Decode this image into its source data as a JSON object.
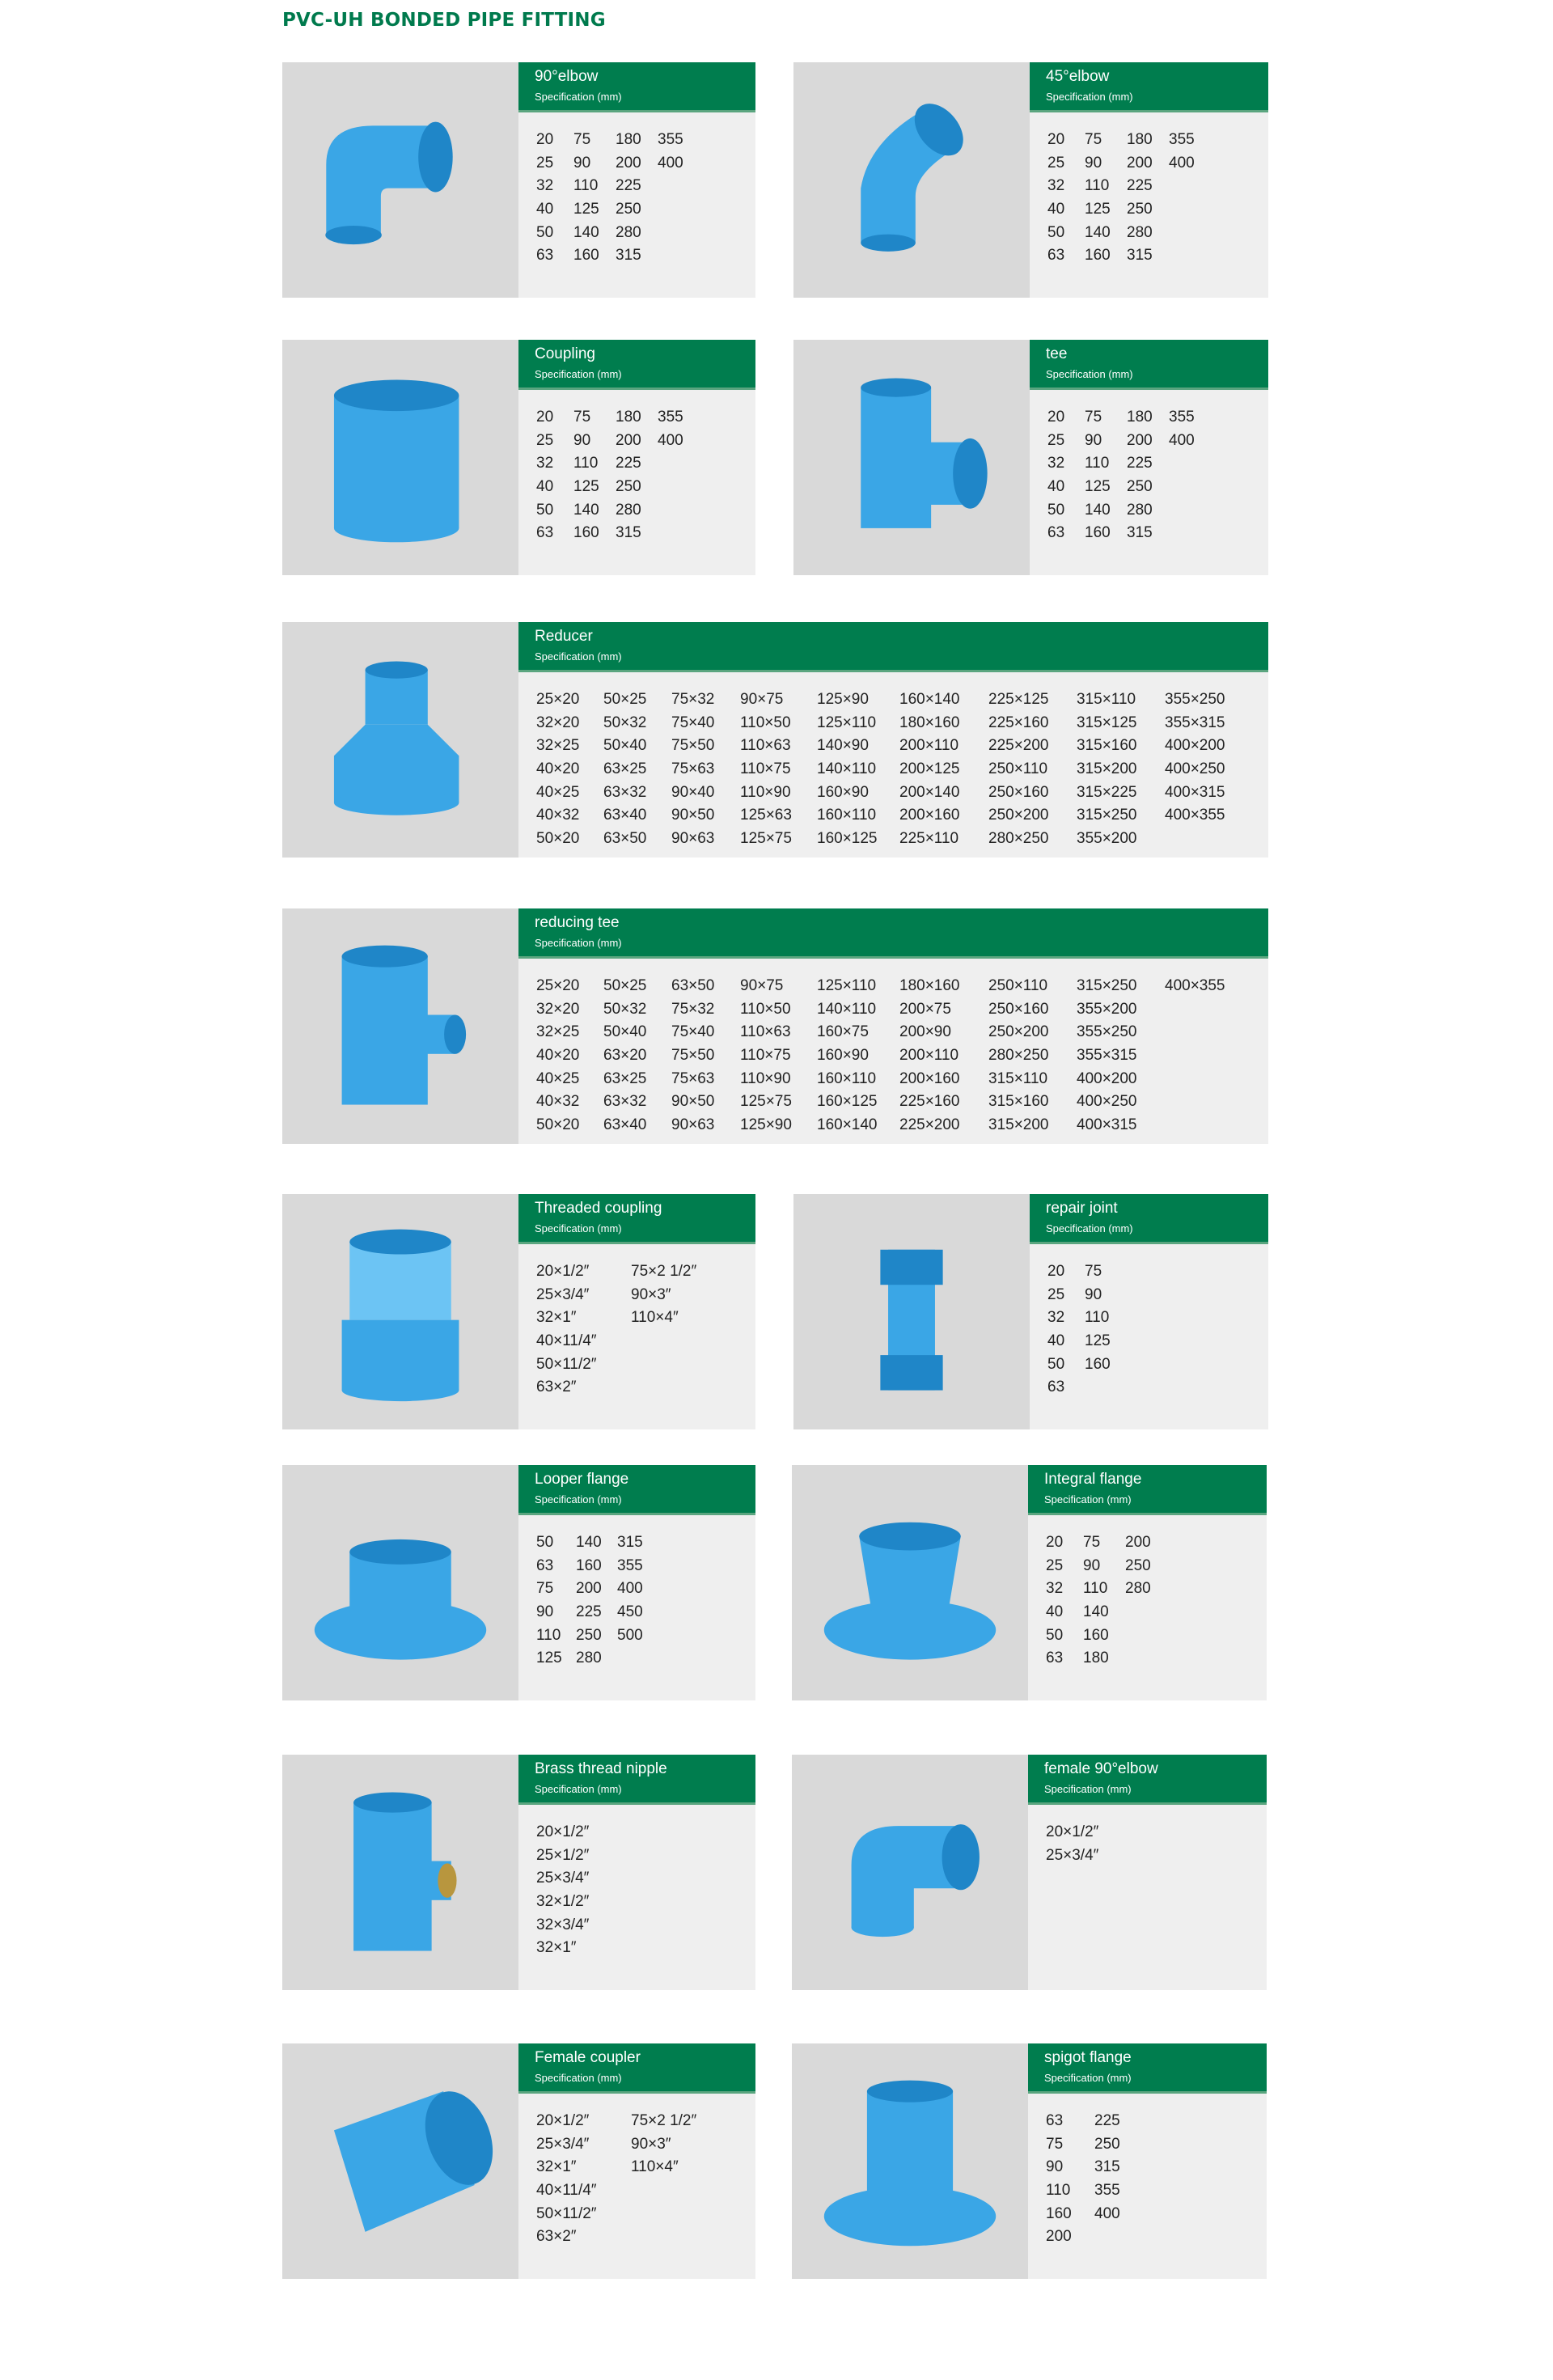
{
  "title": "PVC-UH BONDED PIPE FITTING",
  "spec_label": "Specification (mm)",
  "colors": {
    "accent": "#007d4e",
    "pipe_blue": "#3aa6e6"
  },
  "products": [
    {
      "name": "90°elbow",
      "icon": "elbow-90",
      "layout": "half",
      "rows": [
        [
          "20",
          "75",
          "180",
          "355"
        ],
        [
          "25",
          "90",
          "200",
          "400"
        ],
        [
          "32",
          "110",
          "225"
        ],
        [
          "40",
          "125",
          "250"
        ],
        [
          "50",
          "140",
          "280"
        ],
        [
          "63",
          "160",
          "315"
        ]
      ]
    },
    {
      "name": "45°elbow",
      "icon": "elbow-45",
      "layout": "half",
      "rows": [
        [
          "20",
          "75",
          "180",
          "355"
        ],
        [
          "25",
          "90",
          "200",
          "400"
        ],
        [
          "32",
          "110",
          "225"
        ],
        [
          "40",
          "125",
          "250"
        ],
        [
          "50",
          "140",
          "280"
        ],
        [
          "63",
          "160",
          "315"
        ]
      ]
    },
    {
      "name": "Coupling",
      "icon": "coupling",
      "layout": "half",
      "rows": [
        [
          "20",
          "75",
          "180",
          "355"
        ],
        [
          "25",
          "90",
          "200",
          "400"
        ],
        [
          "32",
          "110",
          "225"
        ],
        [
          "40",
          "125",
          "250"
        ],
        [
          "50",
          "140",
          "280"
        ],
        [
          "63",
          "160",
          "315"
        ]
      ]
    },
    {
      "name": "tee",
      "icon": "tee",
      "layout": "half",
      "rows": [
        [
          "20",
          "75",
          "180",
          "355"
        ],
        [
          "25",
          "90",
          "200",
          "400"
        ],
        [
          "32",
          "110",
          "225"
        ],
        [
          "40",
          "125",
          "250"
        ],
        [
          "50",
          "140",
          "280"
        ],
        [
          "63",
          "160",
          "315"
        ]
      ]
    },
    {
      "name": "Reducer",
      "icon": "reducer",
      "layout": "wide",
      "rows": [
        [
          "25×20",
          "50×25",
          "75×32",
          "90×75",
          "125×90",
          "160×140",
          "225×125",
          "315×110",
          "355×250"
        ],
        [
          "32×20",
          "50×32",
          "75×40",
          "110×50",
          "125×110",
          "180×160",
          "225×160",
          "315×125",
          "355×315"
        ],
        [
          "32×25",
          "50×40",
          "75×50",
          "110×63",
          "140×90",
          "200×110",
          "225×200",
          "315×160",
          "400×200"
        ],
        [
          "40×20",
          "63×25",
          "75×63",
          "110×75",
          "140×110",
          "200×125",
          "250×110",
          "315×200",
          "400×250"
        ],
        [
          "40×25",
          "63×32",
          "90×40",
          "110×90",
          "160×90",
          "200×140",
          "250×160",
          "315×225",
          "400×315"
        ],
        [
          "40×32",
          "63×40",
          "90×50",
          "125×63",
          "160×110",
          "200×160",
          "250×200",
          "315×250",
          "400×355"
        ],
        [
          "50×20",
          "63×50",
          "90×63",
          "125×75",
          "160×125",
          "225×110",
          "280×250",
          "355×200"
        ]
      ]
    },
    {
      "name": "reducing tee",
      "icon": "reducing-tee",
      "layout": "wide",
      "rows": [
        [
          "25×20",
          "50×25",
          "63×50",
          "90×75",
          "125×110",
          "180×160",
          "250×110",
          "315×250",
          "400×355"
        ],
        [
          "32×20",
          "50×32",
          "75×32",
          "110×50",
          "140×110",
          "200×75",
          "250×160",
          "355×200"
        ],
        [
          "32×25",
          "50×40",
          "75×40",
          "110×63",
          "160×75",
          "200×90",
          "250×200",
          "355×250"
        ],
        [
          "40×20",
          "63×20",
          "75×50",
          "110×75",
          "160×90",
          "200×110",
          "280×250",
          "355×315"
        ],
        [
          "40×25",
          "63×25",
          "75×63",
          "110×90",
          "160×110",
          "200×160",
          "315×110",
          "400×200"
        ],
        [
          "40×32",
          "63×32",
          "90×50",
          "125×75",
          "160×125",
          "225×160",
          "315×160",
          "400×250"
        ],
        [
          "50×20",
          "63×40",
          "90×63",
          "125×90",
          "160×140",
          "225×200",
          "315×200",
          "400×315"
        ]
      ]
    },
    {
      "name": "Threaded coupling",
      "icon": "threaded-coupling",
      "layout": "half",
      "rows": [
        [
          "20×1/2″",
          "75×2 1/2″"
        ],
        [
          "25×3/4″",
          "90×3″"
        ],
        [
          "32×1″",
          "110×4″"
        ],
        [
          "40×11/4″"
        ],
        [
          "50×11/2″"
        ],
        [
          "63×2″"
        ]
      ]
    },
    {
      "name": "repair joint",
      "icon": "repair-joint",
      "layout": "half",
      "rows": [
        [
          "20",
          "75"
        ],
        [
          "25",
          "90"
        ],
        [
          "32",
          "110"
        ],
        [
          "40",
          "125"
        ],
        [
          "50",
          "160"
        ],
        [
          "63"
        ]
      ]
    },
    {
      "name": "Looper flange",
      "icon": "looper-flange",
      "layout": "half",
      "rows": [
        [
          "50",
          "140",
          "315"
        ],
        [
          "63",
          "160",
          "355"
        ],
        [
          "75",
          "200",
          "400"
        ],
        [
          "90",
          "225",
          "450"
        ],
        [
          "110",
          "250",
          "500"
        ],
        [
          "125",
          "280"
        ]
      ]
    },
    {
      "name": "Integral flange",
      "icon": "integral-flange",
      "layout": "half",
      "rows": [
        [
          "20",
          "75",
          "200"
        ],
        [
          "25",
          "90",
          "250"
        ],
        [
          "32",
          "110",
          "280"
        ],
        [
          "40",
          "140"
        ],
        [
          "50",
          "160"
        ],
        [
          "63",
          "180"
        ]
      ]
    },
    {
      "name": "Brass thread nipple",
      "icon": "brass-tee",
      "layout": "half",
      "rows": [
        [
          "20×1/2″"
        ],
        [
          "25×1/2″"
        ],
        [
          "25×3/4″"
        ],
        [
          "32×1/2″"
        ],
        [
          "32×3/4″"
        ],
        [
          "32×1″"
        ]
      ]
    },
    {
      "name": "female 90°elbow",
      "icon": "female-elbow",
      "layout": "half",
      "rows": [
        [
          "20×1/2″"
        ],
        [
          "25×3/4″"
        ]
      ]
    },
    {
      "name": "Female coupler",
      "icon": "female-coupler",
      "layout": "half",
      "rows": [
        [
          "20×1/2″",
          "75×2 1/2″"
        ],
        [
          "25×3/4″",
          "90×3″"
        ],
        [
          "32×1″",
          "110×4″"
        ],
        [
          "40×11/4″"
        ],
        [
          "50×11/2″"
        ],
        [
          "63×2″"
        ]
      ]
    },
    {
      "name": "spigot flange",
      "icon": "spigot-flange",
      "layout": "half",
      "rows": [
        [
          "63",
          "225"
        ],
        [
          "75",
          "250"
        ],
        [
          "90",
          "315"
        ],
        [
          "110",
          "355"
        ],
        [
          "160",
          "400"
        ],
        [
          "200"
        ]
      ]
    }
  ]
}
